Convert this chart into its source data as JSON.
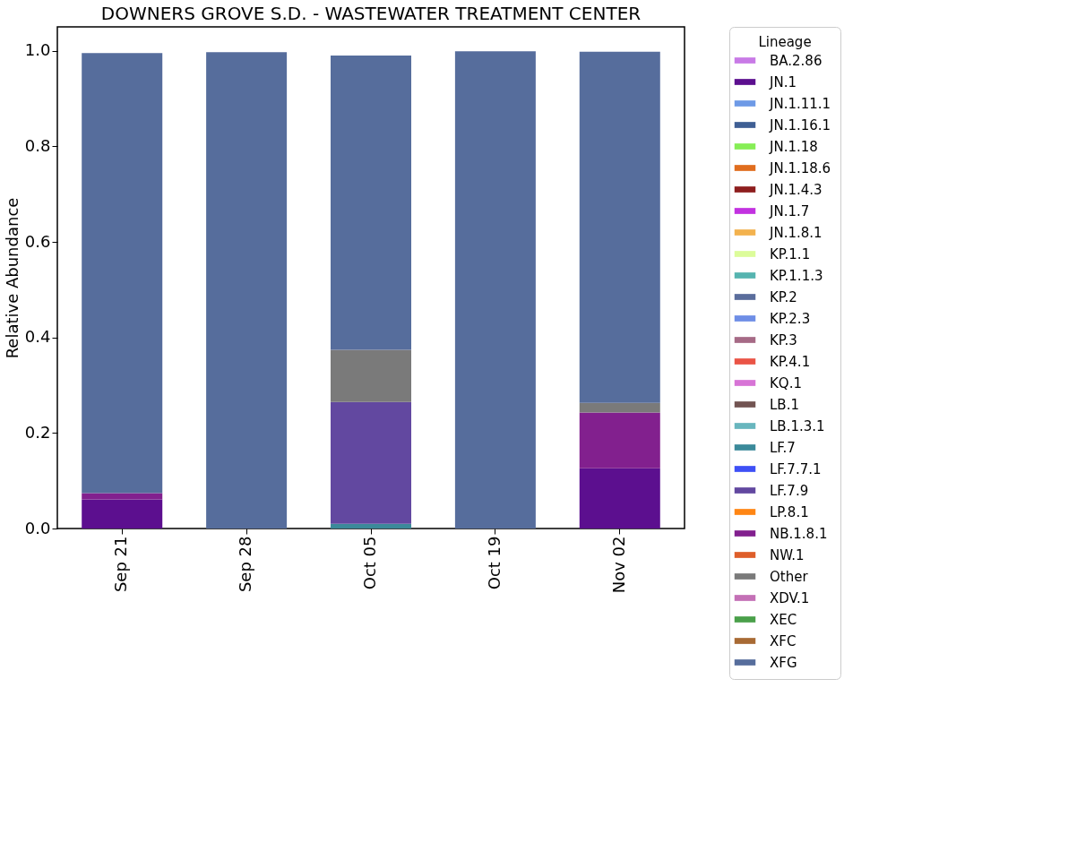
{
  "chart_data": {
    "type": "bar",
    "stacked": true,
    "title": "DOWNERS GROVE S.D. - WASTEWATER TREATMENT CENTER",
    "ylabel": "Relative Abundance",
    "legend_title": "Lineage",
    "legend": "right",
    "grid": false,
    "categories": [
      "Sep 21",
      "Sep 28",
      "Oct 05",
      "Oct 19",
      "Nov 02"
    ],
    "ylim": [
      0,
      1.05
    ],
    "yticks": [
      {
        "value": 0,
        "label": "0.0"
      },
      {
        "value": 0.2,
        "label": "0.2"
      },
      {
        "value": 0.4,
        "label": "0.4"
      },
      {
        "value": 0.6,
        "label": "0.6"
      },
      {
        "value": 0.8,
        "label": "0.8"
      },
      {
        "value": 1,
        "label": "1.0"
      }
    ],
    "series": [
      {
        "name": "BA.2.86",
        "color": "#c87ae6",
        "values": [
          0,
          0,
          0,
          0,
          0
        ]
      },
      {
        "name": "JN.1",
        "color": "#5c0f8f",
        "values": [
          0.061,
          0,
          0,
          0,
          0.126
        ]
      },
      {
        "name": "JN.1.11.1",
        "color": "#6e9ae6",
        "values": [
          0,
          0,
          0,
          0,
          0
        ]
      },
      {
        "name": "JN.1.16.1",
        "color": "#3f5f94",
        "values": [
          0,
          0,
          0,
          0,
          0
        ]
      },
      {
        "name": "JN.1.18",
        "color": "#86ee56",
        "values": [
          0,
          0,
          0,
          0,
          0
        ]
      },
      {
        "name": "JN.1.18.6",
        "color": "#e06d1e",
        "values": [
          0,
          0,
          0,
          0,
          0
        ]
      },
      {
        "name": "JN.1.4.3",
        "color": "#8e1e1e",
        "values": [
          0,
          0,
          0,
          0,
          0
        ]
      },
      {
        "name": "JN.1.7",
        "color": "#c232e0",
        "values": [
          0,
          0,
          0,
          0,
          0
        ]
      },
      {
        "name": "JN.1.8.1",
        "color": "#f3b24e",
        "values": [
          0,
          0,
          0,
          0,
          0
        ]
      },
      {
        "name": "KP.1.1",
        "color": "#dcfc9a",
        "values": [
          0,
          0,
          0,
          0,
          0
        ]
      },
      {
        "name": "KP.1.1.3",
        "color": "#56b4b0",
        "values": [
          0,
          0,
          0,
          0,
          0
        ]
      },
      {
        "name": "KP.2",
        "color": "#5a6d9c",
        "values": [
          0,
          0,
          0,
          0,
          0
        ]
      },
      {
        "name": "KP.2.3",
        "color": "#6e8ee6",
        "values": [
          0,
          0,
          0,
          0,
          0
        ]
      },
      {
        "name": "KP.3",
        "color": "#a66a86",
        "values": [
          0,
          0,
          0,
          0,
          0
        ]
      },
      {
        "name": "KP.4.1",
        "color": "#ea5446",
        "values": [
          0,
          0,
          0,
          0,
          0
        ]
      },
      {
        "name": "KQ.1",
        "color": "#d774d6",
        "values": [
          0,
          0,
          0,
          0,
          0
        ]
      },
      {
        "name": "LB.1",
        "color": "#725452",
        "values": [
          0,
          0,
          0,
          0,
          0
        ]
      },
      {
        "name": "LB.1.3.1",
        "color": "#68b6be",
        "values": [
          0,
          0,
          0,
          0,
          0
        ]
      },
      {
        "name": "LF.7",
        "color": "#3b8a9a",
        "values": [
          0,
          0,
          0.01,
          0,
          0
        ]
      },
      {
        "name": "LF.7.7.1",
        "color": "#3e50f6",
        "values": [
          0,
          0,
          0,
          0,
          0
        ]
      },
      {
        "name": "LF.7.9",
        "color": "#6248a0",
        "values": [
          0,
          0,
          0.255,
          0,
          0
        ]
      },
      {
        "name": "LP.8.1",
        "color": "#ff8614",
        "values": [
          0,
          0,
          0,
          0,
          0
        ]
      },
      {
        "name": "NB.1.8.1",
        "color": "#82208e",
        "values": [
          0.013,
          0,
          0,
          0,
          0.117
        ]
      },
      {
        "name": "NW.1",
        "color": "#de5e2a",
        "values": [
          0,
          0,
          0,
          0,
          0
        ]
      },
      {
        "name": "Other",
        "color": "#7a7a7a",
        "values": [
          0,
          0,
          0.109,
          0,
          0.02
        ]
      },
      {
        "name": "XDV.1",
        "color": "#c470b6",
        "values": [
          0,
          0,
          0,
          0,
          0
        ]
      },
      {
        "name": "XEC",
        "color": "#4aa04a",
        "values": [
          0,
          0,
          0,
          0,
          0
        ]
      },
      {
        "name": "XFC",
        "color": "#a86a34",
        "values": [
          0,
          0,
          0,
          0,
          0
        ]
      },
      {
        "name": "XFG",
        "color": "#566d9c",
        "values": [
          0.921,
          0.997,
          0.616,
          0.999,
          0.735
        ]
      }
    ]
  }
}
